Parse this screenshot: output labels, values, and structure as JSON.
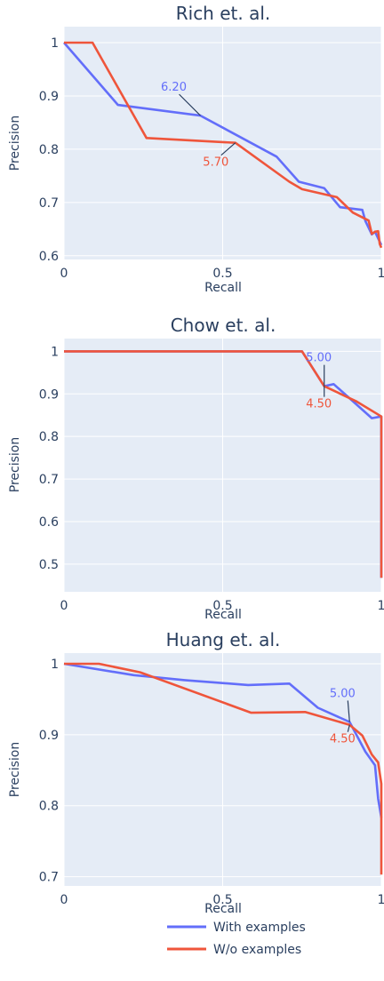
{
  "chart_data": [
    {
      "type": "line",
      "title": "Rich et. al.",
      "xlabel": "Recall",
      "ylabel": "Precision",
      "xlim": [
        0,
        1
      ],
      "ylim": [
        0.593,
        1.03
      ],
      "x_ticks": [
        0,
        0.5,
        1
      ],
      "x_tick_labels": [
        "0",
        "0.5",
        "1"
      ],
      "y_ticks": [
        0.6,
        0.7,
        0.8,
        0.9,
        1
      ],
      "y_tick_labels": [
        "0.6",
        "0.7",
        "0.8",
        "0.9",
        "1"
      ],
      "series": [
        {
          "name": "With examples",
          "color": "#636efa",
          "x": [
            0,
            0.17,
            0.43,
            0.67,
            0.74,
            0.82,
            0.87,
            0.94,
            0.95,
            0.97,
            0.98,
            1.0
          ],
          "y": [
            1,
            0.883,
            0.863,
            0.786,
            0.739,
            0.727,
            0.691,
            0.686,
            0.665,
            0.64,
            0.645,
            0.62
          ]
        },
        {
          "name": "W/o examples",
          "color": "#ef553b",
          "x": [
            0,
            0.09,
            0.26,
            0.54,
            0.71,
            0.75,
            0.86,
            0.91,
            0.96,
            0.97,
            0.98,
            0.99,
            0.995,
            1.0
          ],
          "y": [
            1,
            1,
            0.821,
            0.812,
            0.739,
            0.725,
            0.71,
            0.681,
            0.666,
            0.641,
            0.645,
            0.646,
            0.622,
            0.615
          ]
        }
      ],
      "annotations": [
        {
          "text": "6.20",
          "series": 0,
          "x": 0.43,
          "y": 0.863
        },
        {
          "text": "5.70",
          "series": 1,
          "x": 0.54,
          "y": 0.812
        }
      ]
    },
    {
      "type": "line",
      "title": "Chow et. al.",
      "xlabel": "Recall",
      "ylabel": "Precision",
      "xlim": [
        0,
        1
      ],
      "ylim": [
        0.435,
        1.03
      ],
      "x_ticks": [
        0,
        0.5,
        1
      ],
      "x_tick_labels": [
        "0",
        "0.5",
        "1"
      ],
      "y_ticks": [
        0.5,
        0.6,
        0.7,
        0.8,
        0.9,
        1
      ],
      "y_tick_labels": [
        "0.5",
        "0.6",
        "0.7",
        "0.8",
        "0.9",
        "1"
      ],
      "series": [
        {
          "name": "With examples",
          "color": "#636efa",
          "x": [
            0,
            0.75,
            0.82,
            0.85,
            0.97,
            1.0,
            1.0
          ],
          "y": [
            1,
            1,
            0.918,
            0.923,
            0.843,
            0.847,
            0.468
          ]
        },
        {
          "name": "W/o examples",
          "color": "#ef553b",
          "x": [
            0,
            0.75,
            0.82,
            0.92,
            1.0,
            1.0
          ],
          "y": [
            1,
            1,
            0.918,
            0.883,
            0.847,
            0.468
          ]
        }
      ],
      "annotations": [
        {
          "text": "5.00",
          "series": 0,
          "x": 0.82,
          "y": 0.918
        },
        {
          "text": "4.50",
          "series": 1,
          "x": 0.82,
          "y": 0.918
        }
      ]
    },
    {
      "type": "line",
      "title": "Huang et. al.",
      "xlabel": "Recall",
      "ylabel": "Precision",
      "xlim": [
        0,
        1
      ],
      "ylim": [
        0.687,
        1.015
      ],
      "x_ticks": [
        0,
        0.5,
        1
      ],
      "x_tick_labels": [
        "0",
        "0.5",
        "1"
      ],
      "y_ticks": [
        0.7,
        0.8,
        0.9,
        1
      ],
      "y_tick_labels": [
        "0.7",
        "0.8",
        "0.9",
        "1"
      ],
      "series": [
        {
          "name": "With examples",
          "color": "#636efa",
          "x": [
            0,
            0.22,
            0.38,
            0.58,
            0.71,
            0.8,
            0.9,
            0.95,
            0.98,
            0.99,
            1.0
          ],
          "y": [
            1,
            0.984,
            0.977,
            0.97,
            0.972,
            0.938,
            0.918,
            0.876,
            0.857,
            0.81,
            0.783
          ]
        },
        {
          "name": "W/o examples",
          "color": "#ef553b",
          "x": [
            0,
            0.11,
            0.24,
            0.59,
            0.76,
            0.9,
            0.94,
            0.97,
            0.99,
            1.0,
            1.0
          ],
          "y": [
            1,
            1,
            0.988,
            0.931,
            0.932,
            0.914,
            0.899,
            0.872,
            0.861,
            0.831,
            0.703
          ]
        }
      ],
      "annotations": [
        {
          "text": "5.00",
          "series": 0,
          "x": 0.9,
          "y": 0.918
        },
        {
          "text": "4.50",
          "series": 1,
          "x": 0.9,
          "y": 0.914
        }
      ]
    }
  ],
  "legend": {
    "position": "bottom",
    "items": [
      {
        "label": "With examples",
        "color": "#636efa"
      },
      {
        "label": "W/o examples",
        "color": "#ef553b"
      }
    ]
  },
  "style": {
    "plot_bg": "#e5ecf6",
    "grid_color": "#ffffff",
    "text_color": "#2a3f5f"
  }
}
